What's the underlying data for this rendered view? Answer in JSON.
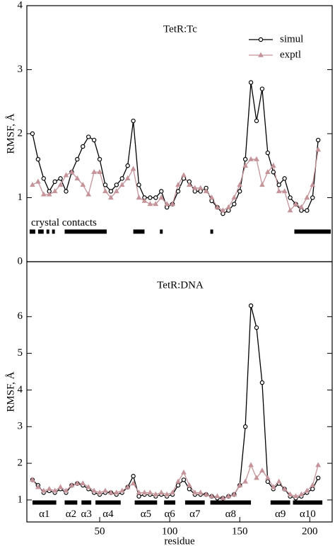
{
  "chart_data": [
    {
      "type": "line",
      "title": "TetR:Tc",
      "ylabel": "RMSF, Å",
      "x": [
        2,
        6,
        10,
        14,
        18,
        22,
        26,
        30,
        34,
        38,
        42,
        46,
        50,
        54,
        58,
        62,
        66,
        70,
        74,
        78,
        82,
        86,
        90,
        94,
        98,
        102,
        106,
        110,
        114,
        118,
        122,
        126,
        130,
        134,
        138,
        142,
        146,
        150,
        154,
        158,
        162,
        166,
        170,
        174,
        178,
        182,
        186,
        190,
        194,
        198,
        202,
        206
      ],
      "series": [
        {
          "name": "simul",
          "color": "#000000",
          "marker": "circle",
          "values": [
            2.0,
            1.6,
            1.3,
            1.1,
            1.25,
            1.3,
            1.1,
            1.4,
            1.6,
            1.8,
            1.95,
            1.9,
            1.6,
            1.2,
            1.1,
            1.2,
            1.3,
            1.5,
            2.2,
            1.2,
            1.0,
            1.0,
            1.0,
            1.1,
            0.85,
            0.9,
            1.1,
            1.3,
            1.25,
            1.1,
            1.1,
            1.15,
            0.95,
            0.85,
            0.75,
            0.8,
            0.9,
            1.1,
            1.6,
            2.8,
            2.2,
            2.7,
            1.7,
            1.4,
            1.2,
            1.3,
            1.0,
            0.9,
            0.8,
            0.8,
            1.0,
            1.9
          ]
        },
        {
          "name": "exptl",
          "color": "#c4949a",
          "marker": "triangle",
          "values": [
            1.2,
            1.25,
            1.05,
            1.05,
            1.1,
            1.2,
            1.35,
            1.4,
            1.3,
            1.2,
            1.05,
            1.4,
            1.4,
            1.1,
            1.0,
            1.1,
            1.2,
            1.3,
            1.45,
            1.0,
            0.95,
            0.9,
            0.9,
            1.0,
            0.9,
            0.9,
            1.2,
            1.35,
            1.2,
            1.15,
            1.15,
            1.1,
            1.0,
            0.85,
            0.8,
            0.85,
            1.0,
            1.2,
            1.5,
            1.6,
            1.6,
            1.2,
            1.4,
            1.5,
            1.1,
            1.1,
            0.8,
            0.9,
            0.85,
            1.0,
            1.2,
            1.75
          ]
        }
      ],
      "xlim": [
        -2,
        216
      ],
      "ylim": [
        0,
        4
      ],
      "yticks": [
        0,
        1,
        2,
        3,
        4
      ],
      "legend": "upper right",
      "segment_label": "crystal contacts",
      "segments": [
        [
          0,
          4
        ],
        [
          6,
          10
        ],
        [
          12,
          14
        ],
        [
          16,
          18
        ],
        [
          25,
          55
        ],
        [
          74,
          82
        ],
        [
          93,
          95
        ],
        [
          129,
          131
        ],
        [
          189,
          215
        ]
      ]
    },
    {
      "type": "line",
      "title": "TetR:DNA",
      "ylabel": "RMSF, Å",
      "xlabel": "residue",
      "x": [
        2,
        6,
        10,
        14,
        18,
        22,
        26,
        30,
        34,
        38,
        42,
        46,
        50,
        54,
        58,
        62,
        66,
        70,
        74,
        78,
        82,
        86,
        90,
        94,
        98,
        102,
        106,
        110,
        114,
        118,
        122,
        126,
        130,
        134,
        138,
        142,
        146,
        150,
        154,
        158,
        162,
        166,
        170,
        174,
        178,
        182,
        186,
        190,
        194,
        198,
        202,
        206
      ],
      "series": [
        {
          "name": "simul",
          "color": "#000000",
          "marker": "circle",
          "values": [
            1.55,
            1.4,
            1.2,
            1.25,
            1.2,
            1.3,
            1.2,
            1.4,
            1.45,
            1.4,
            1.3,
            1.2,
            1.15,
            1.2,
            1.2,
            1.15,
            1.2,
            1.35,
            1.65,
            1.1,
            1.15,
            1.15,
            1.1,
            1.15,
            1.1,
            1.15,
            1.4,
            1.55,
            1.3,
            1.15,
            1.15,
            1.15,
            1.1,
            1.05,
            1.05,
            1.1,
            1.15,
            1.4,
            3.0,
            6.3,
            5.7,
            4.2,
            1.5,
            1.3,
            1.45,
            1.3,
            1.1,
            1.05,
            1.1,
            1.2,
            1.3,
            1.6
          ]
        },
        {
          "name": "exptl",
          "color": "#c4949a",
          "marker": "triangle",
          "values": [
            1.55,
            1.35,
            1.25,
            1.3,
            1.25,
            1.35,
            1.25,
            1.4,
            1.45,
            1.45,
            1.35,
            1.25,
            1.2,
            1.25,
            1.2,
            1.2,
            1.25,
            1.35,
            1.45,
            1.2,
            1.2,
            1.2,
            1.15,
            1.2,
            1.15,
            1.2,
            1.5,
            1.75,
            1.4,
            1.2,
            1.2,
            1.15,
            1.1,
            1.1,
            1.05,
            1.1,
            1.15,
            1.4,
            1.5,
            1.95,
            1.6,
            1.8,
            1.6,
            1.35,
            1.5,
            1.3,
            1.15,
            1.1,
            1.15,
            1.25,
            1.4,
            1.95
          ]
        }
      ],
      "xlim": [
        -2,
        216
      ],
      "ylim": [
        0.4,
        7.5
      ],
      "yticks": [
        1,
        2,
        3,
        4,
        5,
        6
      ],
      "xticks": [
        50,
        100,
        150,
        200
      ],
      "helices": [
        {
          "label": "α1",
          "range": [
            2,
            19
          ]
        },
        {
          "label": "α2",
          "range": [
            25,
            34
          ]
        },
        {
          "label": "α3",
          "range": [
            37,
            44
          ]
        },
        {
          "label": "α4",
          "range": [
            47,
            65
          ]
        },
        {
          "label": "α5",
          "range": [
            75,
            91
          ]
        },
        {
          "label": "α6",
          "range": [
            96,
            104
          ]
        },
        {
          "label": "α7",
          "range": [
            111,
            125
          ]
        },
        {
          "label": "α8",
          "range": [
            129,
            158
          ]
        },
        {
          "label": "α9",
          "range": [
            172,
            186
          ]
        },
        {
          "label": "α10",
          "range": [
            188,
            209
          ]
        }
      ]
    }
  ]
}
